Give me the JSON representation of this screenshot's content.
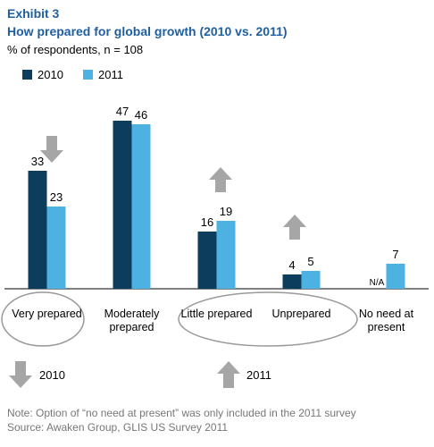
{
  "chart_data": {
    "type": "bar",
    "label": "Exhibit 3",
    "title": "How prepared for global growth (2010 vs. 2011)",
    "subtitle": "% of respondents, n = 108",
    "categories": [
      "Very prepared",
      "Moderately prepared",
      "Little prepared",
      "Unprepared",
      "No need at present"
    ],
    "series": [
      {
        "name": "2010",
        "color": "#0c3d5c",
        "values": [
          33,
          47,
          16,
          4,
          null
        ],
        "value_labels": [
          "33",
          "47",
          "16",
          "4",
          "N/A"
        ]
      },
      {
        "name": "2011",
        "color": "#4db2e2",
        "values": [
          23,
          46,
          19,
          5,
          7
        ]
      }
    ],
    "ylim": [
      0,
      50
    ],
    "note": "Note: Option of “no need at present” was only included in the 2011 survey",
    "source": "Source: Awaken Group,  GLIS US Survey 2011"
  }
}
